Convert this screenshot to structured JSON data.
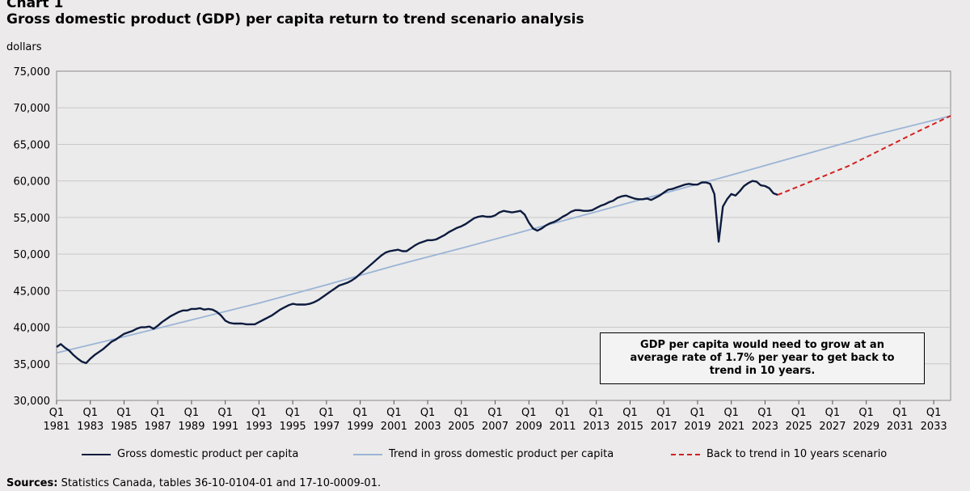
{
  "header": {
    "chart_label": "Chart 1",
    "title": "Gross domestic product (GDP) per capita return to trend scenario analysis",
    "y_unit": "dollars"
  },
  "callout": {
    "text": "GDP per capita would need to grow at an average rate of 1.7% per year to get back to trend in 10 years."
  },
  "sources": {
    "label": "Sources:",
    "text": "Statistics Canada, tables 36-10-0104-01 and 17-10-0009-01."
  },
  "colors": {
    "gdp": "#0d1b3e",
    "trend": "#9bb4d6",
    "scenario": "#d42020",
    "grid": "#c8c8c8"
  },
  "chart_data": {
    "type": "line",
    "title": "Gross domestic product (GDP) per capita return to trend scenario analysis",
    "ylabel": "dollars",
    "xlim": [
      1981.0,
      2034.0
    ],
    "ylim": [
      30000,
      75000
    ],
    "y_ticks": [
      30000,
      35000,
      40000,
      45000,
      50000,
      55000,
      60000,
      65000,
      70000,
      75000
    ],
    "y_tick_labels": [
      "30,000",
      "35,000",
      "40,000",
      "45,000",
      "50,000",
      "55,000",
      "60,000",
      "65,000",
      "70,000",
      "75,000"
    ],
    "x_tick_labels": [
      {
        "q": "Q1",
        "year": "1981",
        "x": 1981
      },
      {
        "q": "Q1",
        "year": "1983",
        "x": 1983
      },
      {
        "q": "Q1",
        "year": "1985",
        "x": 1985
      },
      {
        "q": "Q1",
        "year": "1987",
        "x": 1987
      },
      {
        "q": "Q1",
        "year": "1989",
        "x": 1989
      },
      {
        "q": "Q1",
        "year": "1991",
        "x": 1991
      },
      {
        "q": "Q1",
        "year": "1993",
        "x": 1993
      },
      {
        "q": "Q1",
        "year": "1995",
        "x": 1995
      },
      {
        "q": "Q1",
        "year": "1997",
        "x": 1997
      },
      {
        "q": "Q1",
        "year": "1999",
        "x": 1999
      },
      {
        "q": "Q1",
        "year": "2001",
        "x": 2001
      },
      {
        "q": "Q1",
        "year": "2003",
        "x": 2003
      },
      {
        "q": "Q1",
        "year": "2005",
        "x": 2005
      },
      {
        "q": "Q1",
        "year": "2007",
        "x": 2007
      },
      {
        "q": "Q1",
        "year": "2009",
        "x": 2009
      },
      {
        "q": "Q1",
        "year": "2011",
        "x": 2011
      },
      {
        "q": "Q1",
        "year": "2013",
        "x": 2013
      },
      {
        "q": "Q1",
        "year": "2015",
        "x": 2015
      },
      {
        "q": "Q1",
        "year": "2017",
        "x": 2017
      },
      {
        "q": "Q1",
        "year": "2019",
        "x": 2019
      },
      {
        "q": "Q1",
        "year": "2021",
        "x": 2021
      },
      {
        "q": "Q1",
        "year": "2023",
        "x": 2023
      },
      {
        "q": "Q1",
        "year": "2025",
        "x": 2025
      },
      {
        "q": "Q1",
        "year": "2027",
        "x": 2027
      },
      {
        "q": "Q1",
        "year": "2029",
        "x": 2029
      },
      {
        "q": "Q1",
        "year": "2031",
        "x": 2031
      },
      {
        "q": "Q1",
        "year": "2033",
        "x": 2033
      }
    ],
    "grid": "horizontal",
    "legend_position": "bottom",
    "series": [
      {
        "name": "Gross domestic product per capita",
        "key": "gdp",
        "style": "solid",
        "points": [
          [
            1981.0,
            37300
          ],
          [
            1981.25,
            37700
          ],
          [
            1981.5,
            37200
          ],
          [
            1981.75,
            36800
          ],
          [
            1982.0,
            36200
          ],
          [
            1982.25,
            35700
          ],
          [
            1982.5,
            35300
          ],
          [
            1982.75,
            35100
          ],
          [
            1983.0,
            35700
          ],
          [
            1983.25,
            36200
          ],
          [
            1983.5,
            36600
          ],
          [
            1983.75,
            37000
          ],
          [
            1984.0,
            37500
          ],
          [
            1984.25,
            38000
          ],
          [
            1984.5,
            38300
          ],
          [
            1984.75,
            38700
          ],
          [
            1985.0,
            39100
          ],
          [
            1985.25,
            39300
          ],
          [
            1985.5,
            39500
          ],
          [
            1985.75,
            39800
          ],
          [
            1986.0,
            40000
          ],
          [
            1986.25,
            40000
          ],
          [
            1986.5,
            40100
          ],
          [
            1986.75,
            39800
          ],
          [
            1987.0,
            40200
          ],
          [
            1987.25,
            40700
          ],
          [
            1987.5,
            41100
          ],
          [
            1987.75,
            41500
          ],
          [
            1988.0,
            41800
          ],
          [
            1988.25,
            42100
          ],
          [
            1988.5,
            42300
          ],
          [
            1988.75,
            42300
          ],
          [
            1989.0,
            42500
          ],
          [
            1989.25,
            42500
          ],
          [
            1989.5,
            42600
          ],
          [
            1989.75,
            42400
          ],
          [
            1990.0,
            42500
          ],
          [
            1990.25,
            42400
          ],
          [
            1990.5,
            42100
          ],
          [
            1990.75,
            41600
          ],
          [
            1991.0,
            40900
          ],
          [
            1991.25,
            40600
          ],
          [
            1991.5,
            40500
          ],
          [
            1991.75,
            40500
          ],
          [
            1992.0,
            40500
          ],
          [
            1992.25,
            40400
          ],
          [
            1992.5,
            40400
          ],
          [
            1992.75,
            40400
          ],
          [
            1993.0,
            40700
          ],
          [
            1993.25,
            41000
          ],
          [
            1993.5,
            41300
          ],
          [
            1993.75,
            41600
          ],
          [
            1994.0,
            42000
          ],
          [
            1994.25,
            42400
          ],
          [
            1994.5,
            42700
          ],
          [
            1994.75,
            43000
          ],
          [
            1995.0,
            43200
          ],
          [
            1995.25,
            43100
          ],
          [
            1995.5,
            43100
          ],
          [
            1995.75,
            43100
          ],
          [
            1996.0,
            43200
          ],
          [
            1996.25,
            43400
          ],
          [
            1996.5,
            43700
          ],
          [
            1996.75,
            44100
          ],
          [
            1997.0,
            44500
          ],
          [
            1997.25,
            44900
          ],
          [
            1997.5,
            45300
          ],
          [
            1997.75,
            45700
          ],
          [
            1998.0,
            45900
          ],
          [
            1998.25,
            46100
          ],
          [
            1998.5,
            46400
          ],
          [
            1998.75,
            46800
          ],
          [
            1999.0,
            47300
          ],
          [
            1999.25,
            47800
          ],
          [
            1999.5,
            48300
          ],
          [
            1999.75,
            48800
          ],
          [
            2000.0,
            49300
          ],
          [
            2000.25,
            49800
          ],
          [
            2000.5,
            50200
          ],
          [
            2000.75,
            50400
          ],
          [
            2001.0,
            50500
          ],
          [
            2001.25,
            50600
          ],
          [
            2001.5,
            50400
          ],
          [
            2001.75,
            50400
          ],
          [
            2002.0,
            50800
          ],
          [
            2002.25,
            51200
          ],
          [
            2002.5,
            51500
          ],
          [
            2002.75,
            51700
          ],
          [
            2003.0,
            51900
          ],
          [
            2003.25,
            51900
          ],
          [
            2003.5,
            52000
          ],
          [
            2003.75,
            52300
          ],
          [
            2004.0,
            52600
          ],
          [
            2004.25,
            53000
          ],
          [
            2004.5,
            53300
          ],
          [
            2004.75,
            53600
          ],
          [
            2005.0,
            53800
          ],
          [
            2005.25,
            54100
          ],
          [
            2005.5,
            54500
          ],
          [
            2005.75,
            54900
          ],
          [
            2006.0,
            55100
          ],
          [
            2006.25,
            55200
          ],
          [
            2006.5,
            55100
          ],
          [
            2006.75,
            55100
          ],
          [
            2007.0,
            55300
          ],
          [
            2007.25,
            55700
          ],
          [
            2007.5,
            55900
          ],
          [
            2007.75,
            55800
          ],
          [
            2008.0,
            55700
          ],
          [
            2008.25,
            55800
          ],
          [
            2008.5,
            55900
          ],
          [
            2008.75,
            55400
          ],
          [
            2009.0,
            54300
          ],
          [
            2009.25,
            53500
          ],
          [
            2009.5,
            53200
          ],
          [
            2009.75,
            53500
          ],
          [
            2010.0,
            53900
          ],
          [
            2010.25,
            54200
          ],
          [
            2010.5,
            54400
          ],
          [
            2010.75,
            54700
          ],
          [
            2011.0,
            55100
          ],
          [
            2011.25,
            55400
          ],
          [
            2011.5,
            55800
          ],
          [
            2011.75,
            56000
          ],
          [
            2012.0,
            56000
          ],
          [
            2012.25,
            55900
          ],
          [
            2012.5,
            55900
          ],
          [
            2012.75,
            56000
          ],
          [
            2013.0,
            56300
          ],
          [
            2013.25,
            56600
          ],
          [
            2013.5,
            56800
          ],
          [
            2013.75,
            57100
          ],
          [
            2014.0,
            57300
          ],
          [
            2014.25,
            57700
          ],
          [
            2014.5,
            57900
          ],
          [
            2014.75,
            58000
          ],
          [
            2015.0,
            57800
          ],
          [
            2015.25,
            57600
          ],
          [
            2015.5,
            57500
          ],
          [
            2015.75,
            57500
          ],
          [
            2016.0,
            57600
          ],
          [
            2016.25,
            57400
          ],
          [
            2016.5,
            57700
          ],
          [
            2016.75,
            58000
          ],
          [
            2017.0,
            58400
          ],
          [
            2017.25,
            58800
          ],
          [
            2017.5,
            58900
          ],
          [
            2017.75,
            59100
          ],
          [
            2018.0,
            59300
          ],
          [
            2018.25,
            59500
          ],
          [
            2018.5,
            59600
          ],
          [
            2018.75,
            59500
          ],
          [
            2019.0,
            59500
          ],
          [
            2019.25,
            59800
          ],
          [
            2019.5,
            59800
          ],
          [
            2019.75,
            59600
          ],
          [
            2020.0,
            58200
          ],
          [
            2020.25,
            51700
          ],
          [
            2020.5,
            56500
          ],
          [
            2020.75,
            57500
          ],
          [
            2021.0,
            58200
          ],
          [
            2021.25,
            58000
          ],
          [
            2021.5,
            58600
          ],
          [
            2021.75,
            59300
          ],
          [
            2022.0,
            59700
          ],
          [
            2022.25,
            60000
          ],
          [
            2022.5,
            59900
          ],
          [
            2022.75,
            59400
          ],
          [
            2023.0,
            59300
          ],
          [
            2023.25,
            59000
          ],
          [
            2023.5,
            58300
          ],
          [
            2023.75,
            58100
          ]
        ]
      },
      {
        "name": "Trend in gross domestic product per capita",
        "key": "trend",
        "style": "solid",
        "points": [
          [
            1981.0,
            36500
          ],
          [
            1985.0,
            38700
          ],
          [
            1989.0,
            41000
          ],
          [
            1993.0,
            43300
          ],
          [
            1997.0,
            45800
          ],
          [
            2001.0,
            48400
          ],
          [
            2005.0,
            50800
          ],
          [
            2009.0,
            53300
          ],
          [
            2013.0,
            55800
          ],
          [
            2017.0,
            58300
          ],
          [
            2021.0,
            60800
          ],
          [
            2025.0,
            63400
          ],
          [
            2029.0,
            66000
          ],
          [
            2033.0,
            68300
          ],
          [
            2034.0,
            68900
          ]
        ]
      },
      {
        "name": "Back to trend in 10 years scenario",
        "key": "scenario",
        "style": "dashed",
        "points": [
          [
            2023.75,
            58100
          ],
          [
            2026.0,
            60200
          ],
          [
            2028.0,
            62100
          ],
          [
            2030.0,
            64400
          ],
          [
            2032.0,
            66700
          ],
          [
            2034.0,
            68900
          ]
        ]
      }
    ]
  }
}
